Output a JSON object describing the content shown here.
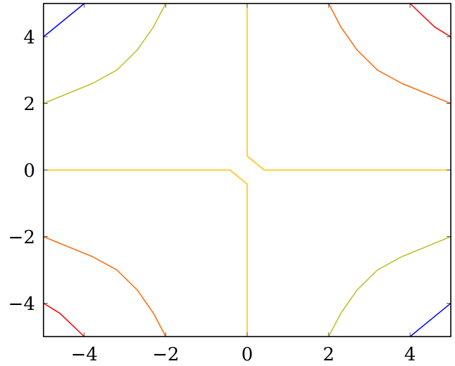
{
  "chart_data": {
    "type": "line",
    "subtype": "contour",
    "title": "",
    "xlabel": "",
    "ylabel": "",
    "xlim": [
      -5,
      5
    ],
    "ylim": [
      -5,
      5
    ],
    "xticks": [
      -4,
      -2,
      0,
      2,
      4
    ],
    "yticks": [
      -4,
      -2,
      0,
      2,
      4
    ],
    "xtick_labels": [
      "−4",
      "−2",
      "0",
      "2",
      "4"
    ],
    "ytick_labels": [
      "−4",
      "−2",
      "0",
      "2",
      "4"
    ],
    "grid": false,
    "legend": "none",
    "series": [
      {
        "color": "#0000ff",
        "points": [
          [
            -5,
            4
          ],
          [
            -4,
            5
          ]
        ]
      },
      {
        "color": "#0000ff",
        "points": [
          [
            4,
            -5
          ],
          [
            5,
            -4
          ]
        ]
      },
      {
        "color": "#bcbd22",
        "points": [
          [
            -5,
            2
          ],
          [
            -4.4,
            2.3
          ],
          [
            -3.8,
            2.6
          ],
          [
            -3.2,
            3.0
          ],
          [
            -2.7,
            3.6
          ],
          [
            -2.3,
            4.3
          ],
          [
            -2,
            5
          ]
        ]
      },
      {
        "color": "#bcbd22",
        "points": [
          [
            2,
            -5
          ],
          [
            2.3,
            -4.3
          ],
          [
            2.7,
            -3.6
          ],
          [
            3.2,
            -3.0
          ],
          [
            3.8,
            -2.6
          ],
          [
            4.4,
            -2.3
          ],
          [
            5,
            -2
          ]
        ]
      },
      {
        "color": "#ff6600",
        "points": [
          [
            2,
            5
          ],
          [
            2.3,
            4.3
          ],
          [
            2.7,
            3.6
          ],
          [
            3.2,
            3.0
          ],
          [
            3.8,
            2.6
          ],
          [
            4.4,
            2.3
          ],
          [
            5,
            2
          ]
        ]
      },
      {
        "color": "#ff6600",
        "points": [
          [
            -5,
            -2
          ],
          [
            -4.4,
            -2.3
          ],
          [
            -3.8,
            -2.6
          ],
          [
            -3.2,
            -3.0
          ],
          [
            -2.7,
            -3.6
          ],
          [
            -2.3,
            -4.3
          ],
          [
            -2,
            -5
          ]
        ]
      },
      {
        "color": "#ff0000",
        "points": [
          [
            4,
            5
          ],
          [
            4.6,
            4.3
          ],
          [
            5,
            4
          ]
        ]
      },
      {
        "color": "#ff0000",
        "points": [
          [
            -5,
            -4
          ],
          [
            -4.6,
            -4.3
          ],
          [
            -4,
            -5
          ]
        ]
      },
      {
        "color": "#ffc000",
        "points": [
          [
            0,
            5
          ],
          [
            0,
            0.42
          ],
          [
            0.42,
            0
          ],
          [
            5,
            0
          ]
        ]
      },
      {
        "color": "#ffc000",
        "points": [
          [
            -5,
            0
          ],
          [
            -0.42,
            0
          ],
          [
            0,
            -0.42
          ],
          [
            0,
            -5
          ]
        ]
      }
    ]
  }
}
